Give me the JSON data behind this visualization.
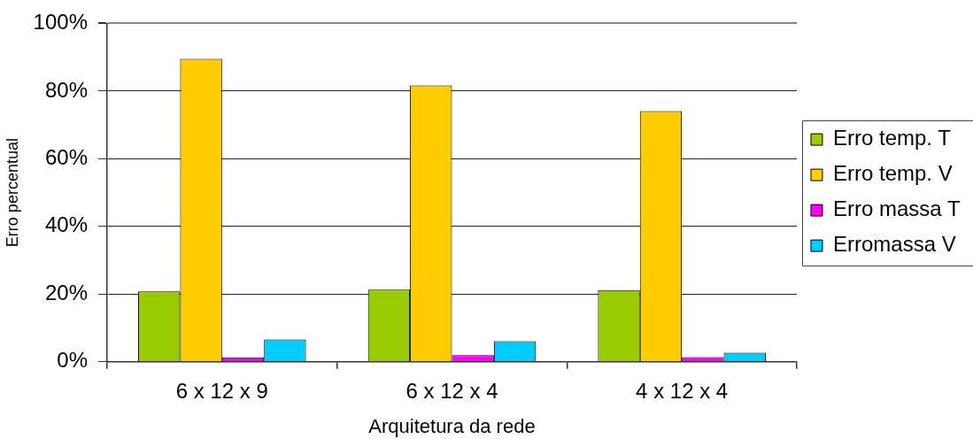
{
  "chart_data": {
    "type": "bar",
    "xlabel": "Arquitetura da rede",
    "ylabel": "Erro percentual",
    "categories": [
      "6 x 12 x 9",
      "6 x 12 x 4",
      "4 x 12 x 4"
    ],
    "series": [
      {
        "name": "Erro temp. T",
        "color": "#99cc00",
        "values": [
          20.8,
          21.3,
          21.2
        ]
      },
      {
        "name": "Erro temp. V",
        "color": "#ffcc00",
        "values": [
          89.5,
          81.7,
          74.1
        ]
      },
      {
        "name": "Erro massa T",
        "color": "#ff00ff",
        "values": [
          1.3,
          2.0,
          1.4
        ]
      },
      {
        "name": "Erromassa V",
        "color": "#00ccff",
        "values": [
          6.6,
          6.1,
          2.7
        ]
      }
    ],
    "ylim": [
      0,
      100
    ],
    "yticks": [
      {
        "value": 0,
        "label": "0%"
      },
      {
        "value": 20,
        "label": "20%"
      },
      {
        "value": 40,
        "label": "40%"
      },
      {
        "value": 60,
        "label": "60%"
      },
      {
        "value": 80,
        "label": "80%"
      },
      {
        "value": 100,
        "label": "100%"
      }
    ],
    "grid": "y",
    "legend": "right"
  }
}
